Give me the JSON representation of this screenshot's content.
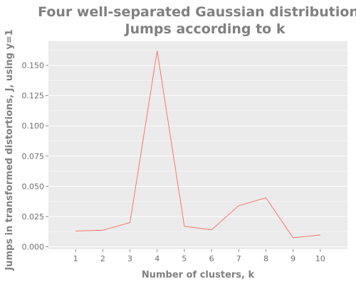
{
  "chart_data": {
    "type": "line",
    "title_lines": [
      "Four well-separated Gaussian distributions:",
      "Jumps according to k"
    ],
    "xlabel": "Number of clusters, k",
    "ylabel": "Jumps in transformed distortions, J, using y=1",
    "x": [
      1,
      2,
      3,
      4,
      5,
      6,
      7,
      8,
      9,
      10
    ],
    "series": [
      {
        "values": [
          0.013,
          0.0137,
          0.02,
          0.162,
          0.017,
          0.014,
          0.034,
          0.0405,
          0.0075,
          0.0098
        ]
      }
    ],
    "xlim": [
      0,
      11
    ],
    "ylim": [
      -0.002,
      0.17
    ],
    "xticks": [
      "1",
      "2",
      "3",
      "4",
      "5",
      "6",
      "7",
      "8",
      "9",
      "10"
    ],
    "yticks": [
      {
        "value": 0.0,
        "label": "0.000"
      },
      {
        "value": 0.025,
        "label": "0.025"
      },
      {
        "value": 0.05,
        "label": "0.050"
      },
      {
        "value": 0.075,
        "label": "0.075"
      },
      {
        "value": 0.1,
        "label": "0.100"
      },
      {
        "value": 0.125,
        "label": "0.125"
      },
      {
        "value": 0.15,
        "label": "0.150"
      }
    ],
    "grid": true,
    "colors": {
      "background": "#EBEBEB",
      "grid": "#FFFFFF",
      "line": "#F8766D"
    }
  }
}
